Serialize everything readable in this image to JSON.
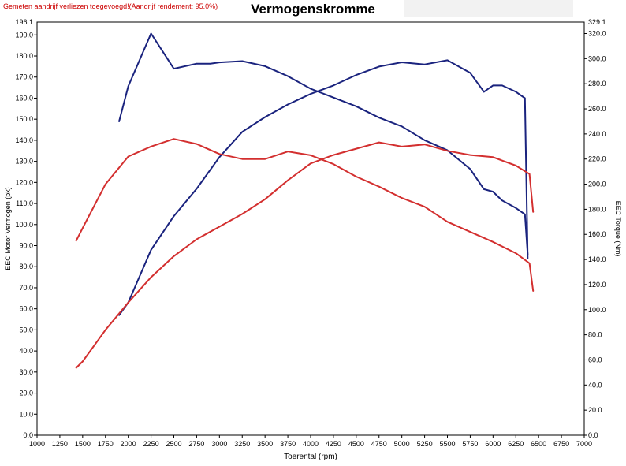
{
  "header": {
    "warning": "Gemeten aandrijf verliezen toegevoegd!(Aandrijf rendement: 95.0%)",
    "title": "Vermogenskromme"
  },
  "chart_data": {
    "type": "line",
    "title": "Vermogenskromme",
    "xlabel": "Toerental (rpm)",
    "ylabel_left": "EEC Motor Vermogen (pk)",
    "ylabel_right": "EEC Torque (Nm)",
    "xlim": [
      1000,
      7000
    ],
    "ylim_left": [
      0,
      196.1
    ],
    "ylim_right": [
      0,
      329.1
    ],
    "x_ticks": [
      "1000",
      "1250",
      "1500",
      "1750",
      "2000",
      "2250",
      "2500",
      "2750",
      "3000",
      "3250",
      "3500",
      "3750",
      "4000",
      "4250",
      "4500",
      "4750",
      "5000",
      "5250",
      "5500",
      "5750",
      "6000",
      "6250",
      "6500",
      "6750",
      "7000"
    ],
    "y_left_ticks": [
      "0.0",
      "10.0",
      "20.0",
      "30.0",
      "40.0",
      "50.0",
      "60.0",
      "70.0",
      "80.0",
      "90.0",
      "100.0",
      "110.0",
      "120.0",
      "130.0",
      "140.0",
      "150.0",
      "160.0",
      "170.0",
      "180.0",
      "190.0"
    ],
    "y_left_top_label": "196.1",
    "y_right_ticks": [
      "0.0",
      "20.0",
      "40.0",
      "60.0",
      "80.0",
      "100.0",
      "120.0",
      "140.0",
      "160.0",
      "180.0",
      "200.0",
      "220.0",
      "240.0",
      "260.0",
      "280.0",
      "300.0",
      "320.0"
    ],
    "y_right_top_label": "329.1",
    "grid": true,
    "series": [
      {
        "color": "#1a237e",
        "axis": "left",
        "x": [
          1900,
          2000,
          2250,
          2500,
          2750,
          3000,
          3250,
          3500,
          3750,
          4000,
          4250,
          4500,
          4750,
          5000,
          5250,
          5500,
          5750,
          5900,
          6000,
          6100,
          6250,
          6350,
          6380
        ],
        "y": [
          57,
          63,
          88,
          104,
          117,
          132,
          144,
          151,
          157,
          162,
          166,
          171,
          175,
          177,
          176,
          178,
          172,
          163,
          166,
          166,
          163,
          160,
          84
        ]
      },
      {
        "color": "#1a237e",
        "axis": "right",
        "x": [
          1900,
          2000,
          2250,
          2500,
          2750,
          2900,
          3000,
          3250,
          3500,
          3750,
          4000,
          4250,
          4500,
          4750,
          5000,
          5250,
          5500,
          5750,
          5900,
          6000,
          6100,
          6250,
          6350,
          6380
        ],
        "y": [
          250,
          278,
          320,
          292,
          296,
          296,
          297,
          298,
          294,
          286,
          276,
          269,
          262,
          253,
          246,
          235,
          227,
          212,
          196,
          194,
          187,
          181,
          176,
          144
        ]
      },
      {
        "color": "#d32f2f",
        "axis": "left",
        "x": [
          1430,
          1500,
          1750,
          2000,
          2250,
          2500,
          2750,
          3000,
          3250,
          3500,
          3750,
          4000,
          4250,
          4500,
          4750,
          5000,
          5250,
          5500,
          5750,
          6000,
          6250,
          6400,
          6440
        ],
        "y": [
          32,
          35,
          50,
          63,
          75,
          85,
          93,
          99,
          105,
          112,
          121,
          129,
          133,
          136,
          139,
          137,
          138,
          135,
          133,
          132,
          128,
          124,
          106
        ]
      },
      {
        "color": "#d32f2f",
        "axis": "right",
        "x": [
          1430,
          1500,
          1750,
          2000,
          2250,
          2500,
          2750,
          3000,
          3250,
          3500,
          3750,
          4000,
          4250,
          4500,
          4750,
          5000,
          5250,
          5500,
          5750,
          6000,
          6250,
          6400,
          6440
        ],
        "y": [
          155,
          165,
          200,
          222,
          230,
          236,
          232,
          224,
          220,
          220,
          226,
          223,
          216,
          206,
          198,
          189,
          182,
          170,
          162,
          154,
          145,
          137,
          115
        ]
      }
    ]
  }
}
